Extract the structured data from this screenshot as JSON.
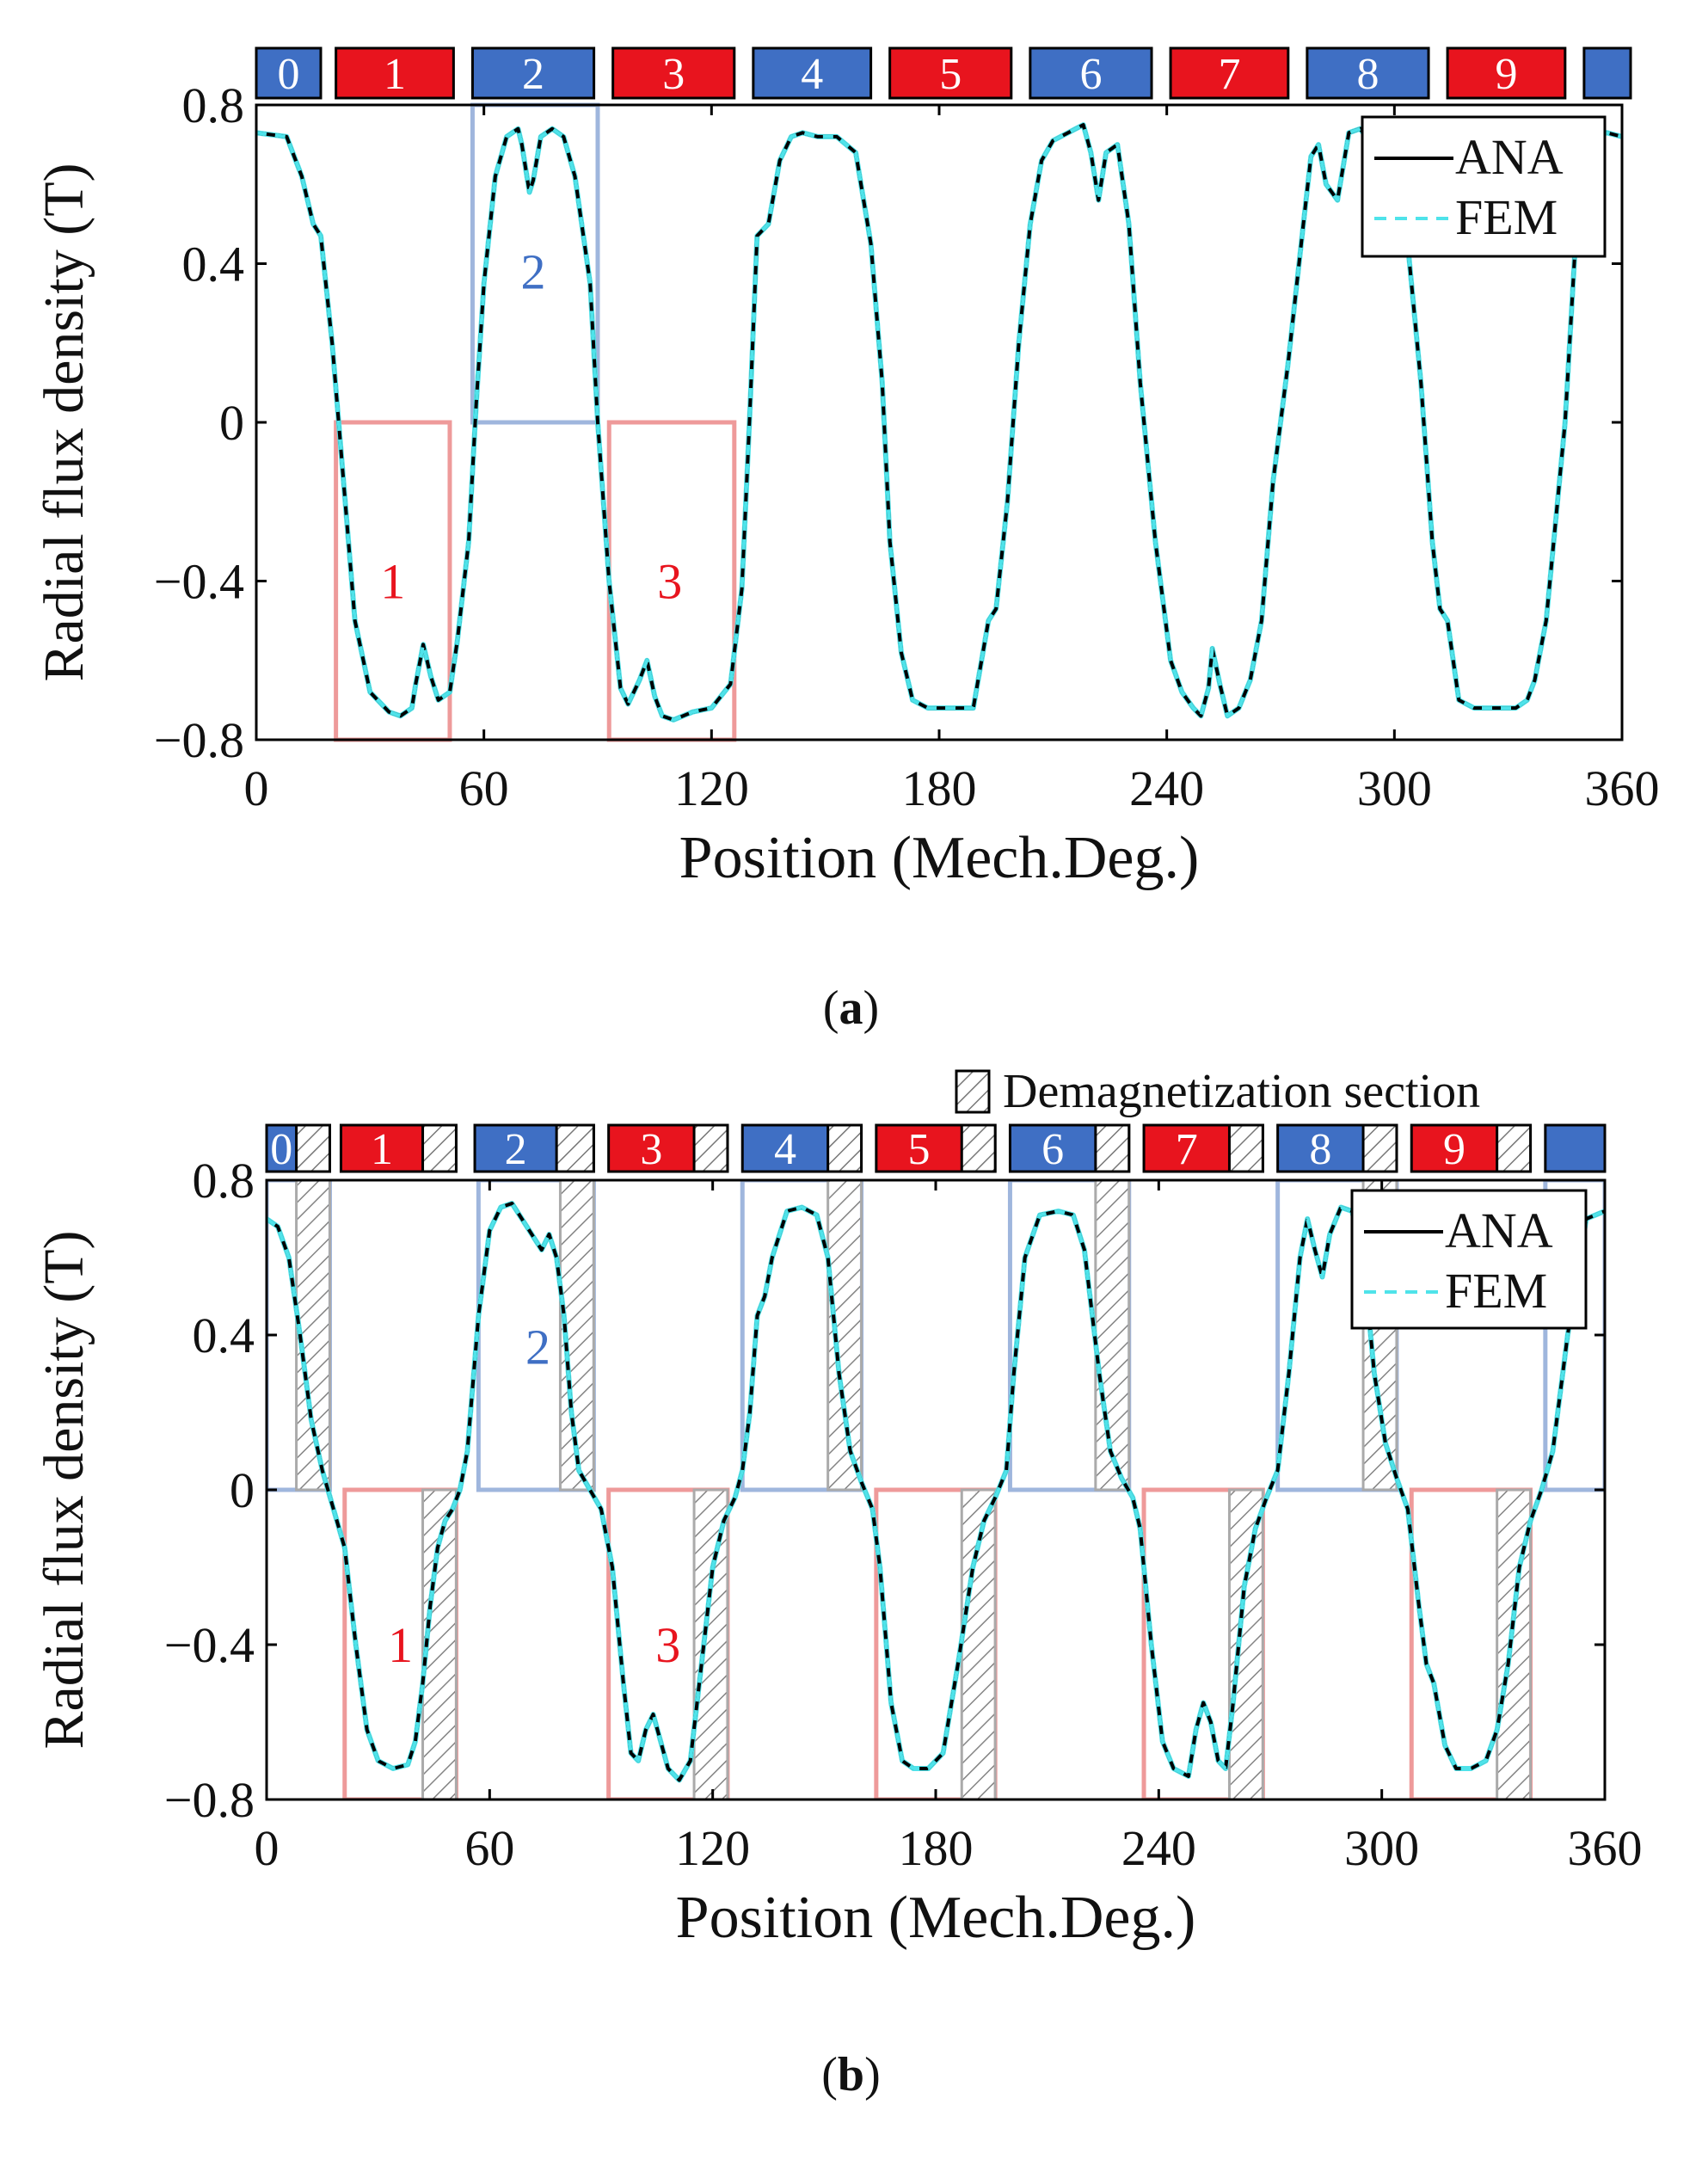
{
  "colors": {
    "red_magnet": "#e8141e",
    "blue_magnet": "#3f6fc4",
    "red_box": "#ee9a9a",
    "blue_box": "#9fb6dd",
    "ana_line": "#000000",
    "fem_line": "#4fe3ea",
    "hatch": "#888888"
  },
  "captions": {
    "a": "a",
    "b": "b"
  },
  "chart_data": [
    {
      "type": "line",
      "panel": "a",
      "xlabel": "Position (Mech.Deg.)",
      "ylabel": "Radial flux density (T)",
      "xlim": [
        0,
        360
      ],
      "ylim": [
        -0.8,
        0.8
      ],
      "xticks": [
        0,
        60,
        120,
        180,
        240,
        300,
        360
      ],
      "yticks": [
        0.8,
        0.4,
        0,
        -0.4,
        -0.8
      ],
      "ytick_labels": [
        "0.8",
        "0.4",
        "0",
        "−0.4",
        "−0.8"
      ],
      "legend": {
        "position": "top-right",
        "entries": [
          "ANA",
          "FEM"
        ]
      },
      "magnets": [
        {
          "label": "0",
          "start": 0,
          "end": 17,
          "color": "blue"
        },
        {
          "label": "1",
          "start": 21,
          "end": 52,
          "color": "red"
        },
        {
          "label": "2",
          "start": 57,
          "end": 89,
          "color": "blue"
        },
        {
          "label": "3",
          "start": 94,
          "end": 126,
          "color": "red"
        },
        {
          "label": "4",
          "start": 131,
          "end": 162,
          "color": "blue"
        },
        {
          "label": "5",
          "start": 167,
          "end": 199,
          "color": "red"
        },
        {
          "label": "6",
          "start": 204,
          "end": 236,
          "color": "blue"
        },
        {
          "label": "7",
          "start": 241,
          "end": 272,
          "color": "red"
        },
        {
          "label": "8",
          "start": 277,
          "end": 309,
          "color": "blue"
        },
        {
          "label": "9",
          "start": 314,
          "end": 345,
          "color": "red"
        },
        {
          "label": "",
          "start": 350,
          "end": 367,
          "color": "blue"
        }
      ],
      "highlight_boxes": [
        {
          "label": "1",
          "x0": 21,
          "x1": 51,
          "y0": -0.8,
          "y1": 0,
          "color": "red",
          "label_x": 36,
          "label_y": -0.4
        },
        {
          "label": "2",
          "x0": 57,
          "x1": 90,
          "y0": 0,
          "y1": 0.8,
          "color": "blue",
          "label_x": 73,
          "label_y": 0.38
        },
        {
          "label": "3",
          "x0": 93,
          "x1": 126,
          "y0": -0.8,
          "y1": 0,
          "color": "red",
          "label_x": 109,
          "label_y": -0.4
        }
      ],
      "series": [
        {
          "name": "ANA",
          "style": "solid",
          "x": [
            0,
            8,
            12,
            15,
            17,
            20,
            23,
            26,
            30,
            35,
            38,
            41,
            42,
            44,
            46,
            48,
            51,
            53,
            56,
            58,
            60,
            63,
            66,
            69,
            70,
            72,
            73,
            75,
            78,
            81,
            84,
            88,
            90,
            93,
            96,
            98,
            101,
            103,
            105,
            107,
            110,
            115,
            120,
            125,
            128,
            130,
            132,
            135,
            138,
            141,
            144,
            148,
            153,
            158,
            162,
            165,
            167,
            170,
            173,
            177,
            181,
            185,
            189,
            193,
            195,
            198,
            201,
            204,
            207,
            210,
            214,
            216,
            218,
            220,
            222,
            224,
            227,
            230,
            233,
            237,
            241,
            244,
            247,
            249,
            251,
            252,
            254,
            256,
            259,
            262,
            265,
            268,
            272,
            276,
            278,
            280,
            282,
            285,
            288,
            291,
            294,
            297,
            300,
            303,
            307,
            310,
            312,
            314,
            317,
            321,
            327,
            332,
            335,
            337,
            340,
            342,
            345,
            348,
            352,
            356,
            360
          ],
          "y": [
            0.73,
            0.72,
            0.62,
            0.5,
            0.47,
            0.2,
            -0.15,
            -0.5,
            -0.68,
            -0.73,
            -0.74,
            -0.72,
            -0.66,
            -0.56,
            -0.64,
            -0.7,
            -0.68,
            -0.55,
            -0.3,
            0.05,
            0.35,
            0.62,
            0.72,
            0.74,
            0.7,
            0.58,
            0.61,
            0.72,
            0.74,
            0.72,
            0.62,
            0.35,
            0.0,
            -0.4,
            -0.67,
            -0.71,
            -0.65,
            -0.6,
            -0.69,
            -0.74,
            -0.75,
            -0.73,
            -0.72,
            -0.66,
            -0.42,
            0.0,
            0.47,
            0.5,
            0.66,
            0.72,
            0.73,
            0.72,
            0.72,
            0.68,
            0.45,
            0.1,
            -0.3,
            -0.58,
            -0.7,
            -0.72,
            -0.72,
            -0.72,
            -0.72,
            -0.5,
            -0.47,
            -0.2,
            0.2,
            0.5,
            0.66,
            0.71,
            0.73,
            0.74,
            0.75,
            0.68,
            0.56,
            0.68,
            0.7,
            0.5,
            0.1,
            -0.3,
            -0.6,
            -0.68,
            -0.72,
            -0.74,
            -0.67,
            -0.57,
            -0.66,
            -0.74,
            -0.72,
            -0.65,
            -0.5,
            -0.15,
            0.15,
            0.5,
            0.67,
            0.7,
            0.6,
            0.56,
            0.73,
            0.74,
            0.7,
            0.72,
            0.7,
            0.5,
            0.1,
            -0.3,
            -0.47,
            -0.5,
            -0.7,
            -0.72,
            -0.72,
            -0.72,
            -0.7,
            -0.65,
            -0.5,
            -0.3,
            0.0,
            0.5,
            0.72,
            0.73,
            0.72
          ]
        },
        {
          "name": "FEM",
          "style": "dashed",
          "same_as": "ANA"
        }
      ]
    },
    {
      "type": "line",
      "panel": "b",
      "xlabel": "Position (Mech.Deg.)",
      "ylabel": "Radial flux density (T)",
      "xlim": [
        0,
        360
      ],
      "ylim": [
        -0.8,
        0.8
      ],
      "xticks": [
        0,
        60,
        120,
        180,
        240,
        300,
        360
      ],
      "yticks": [
        0.8,
        0.4,
        0,
        -0.4,
        -0.8
      ],
      "ytick_labels": [
        "0.8",
        "0.4",
        "0",
        "−0.4",
        "−0.8"
      ],
      "legend": {
        "position": "top-right",
        "entries": [
          "ANA",
          "FEM"
        ]
      },
      "demag_legend": "Demagnetization section",
      "magnets": [
        {
          "label": "0",
          "start": 0,
          "end": 17,
          "color": "blue",
          "demag": [
            8,
            17
          ]
        },
        {
          "label": "1",
          "start": 20,
          "end": 51,
          "color": "red",
          "demag": [
            42,
            51
          ]
        },
        {
          "label": "2",
          "start": 56,
          "end": 88,
          "color": "blue",
          "demag": [
            78,
            88
          ]
        },
        {
          "label": "3",
          "start": 92,
          "end": 124,
          "color": "red",
          "demag": [
            115,
            124
          ]
        },
        {
          "label": "4",
          "start": 128,
          "end": 160,
          "color": "blue",
          "demag": [
            151,
            160
          ]
        },
        {
          "label": "5",
          "start": 164,
          "end": 196,
          "color": "red",
          "demag": [
            187,
            196
          ]
        },
        {
          "label": "6",
          "start": 200,
          "end": 232,
          "color": "blue",
          "demag": [
            223,
            232
          ]
        },
        {
          "label": "7",
          "start": 236,
          "end": 268,
          "color": "red",
          "demag": [
            259,
            268
          ]
        },
        {
          "label": "8",
          "start": 272,
          "end": 304,
          "color": "blue",
          "demag": [
            295,
            304
          ]
        },
        {
          "label": "9",
          "start": 308,
          "end": 340,
          "color": "red",
          "demag": [
            331,
            340
          ]
        },
        {
          "label": "",
          "start": 344,
          "end": 360,
          "color": "blue"
        }
      ],
      "pole_boxes": [
        {
          "x0": 0,
          "x1": 17,
          "sign": "pos",
          "demag": [
            8,
            17
          ]
        },
        {
          "x0": 21,
          "x1": 51,
          "sign": "neg",
          "demag": [
            42,
            51
          ]
        },
        {
          "x0": 57,
          "x1": 88,
          "sign": "pos",
          "demag": [
            79,
            88
          ]
        },
        {
          "x0": 92,
          "x1": 124,
          "sign": "neg",
          "demag": [
            115,
            124
          ]
        },
        {
          "x0": 128,
          "x1": 160,
          "sign": "pos",
          "demag": [
            151,
            160
          ]
        },
        {
          "x0": 164,
          "x1": 196,
          "sign": "neg",
          "demag": [
            187,
            196
          ]
        },
        {
          "x0": 200,
          "x1": 232,
          "sign": "pos",
          "demag": [
            223,
            232
          ]
        },
        {
          "x0": 236,
          "x1": 268,
          "sign": "neg",
          "demag": [
            259,
            268
          ]
        },
        {
          "x0": 272,
          "x1": 304,
          "sign": "pos",
          "demag": [
            295,
            304
          ]
        },
        {
          "x0": 308,
          "x1": 340,
          "sign": "neg",
          "demag": [
            331,
            340
          ]
        },
        {
          "x0": 344,
          "x1": 360,
          "sign": "pos"
        }
      ],
      "box_labels": [
        {
          "label": "1",
          "x": 36,
          "y": -0.4,
          "color": "red"
        },
        {
          "label": "2",
          "x": 73,
          "y": 0.37,
          "color": "blue"
        },
        {
          "label": "3",
          "x": 108,
          "y": -0.4,
          "color": "red"
        }
      ],
      "series": [
        {
          "name": "ANA",
          "style": "solid",
          "x": [
            0,
            3,
            6,
            9,
            12,
            15,
            18,
            21,
            24,
            27,
            30,
            34,
            38,
            40,
            42,
            44,
            46,
            48,
            50,
            52,
            54,
            57,
            60,
            63,
            66,
            70,
            74,
            76,
            78,
            80,
            82,
            84,
            87,
            90,
            93,
            96,
            98,
            100,
            102,
            104,
            106,
            108,
            111,
            114,
            117,
            120,
            123,
            126,
            128,
            130,
            132,
            134,
            136,
            140,
            144,
            148,
            151,
            154,
            157,
            160,
            163,
            165,
            168,
            171,
            174,
            178,
            182,
            186,
            190,
            193,
            196,
            199,
            201,
            204,
            208,
            213,
            217,
            220,
            224,
            227,
            230,
            233,
            235,
            238,
            241,
            244,
            248,
            250,
            252,
            254,
            256,
            258,
            260,
            263,
            266,
            269,
            272,
            275,
            278,
            280,
            282,
            284,
            286,
            289,
            292,
            295,
            298,
            301,
            304,
            307,
            310,
            312,
            314,
            317,
            320,
            324,
            328,
            331,
            334,
            337,
            340,
            343,
            346,
            350,
            355,
            360
          ],
          "y": [
            0.7,
            0.68,
            0.6,
            0.4,
            0.18,
            0.05,
            -0.05,
            -0.15,
            -0.4,
            -0.62,
            -0.7,
            -0.72,
            -0.71,
            -0.65,
            -0.5,
            -0.3,
            -0.15,
            -0.08,
            -0.05,
            0.0,
            0.1,
            0.45,
            0.67,
            0.73,
            0.74,
            0.68,
            0.62,
            0.66,
            0.6,
            0.45,
            0.2,
            0.05,
            0.0,
            -0.05,
            -0.2,
            -0.5,
            -0.68,
            -0.7,
            -0.62,
            -0.58,
            -0.65,
            -0.72,
            -0.75,
            -0.7,
            -0.45,
            -0.2,
            -0.08,
            -0.02,
            0.05,
            0.2,
            0.45,
            0.5,
            0.6,
            0.72,
            0.73,
            0.71,
            0.6,
            0.3,
            0.1,
            0.02,
            -0.05,
            -0.2,
            -0.55,
            -0.7,
            -0.72,
            -0.72,
            -0.68,
            -0.45,
            -0.2,
            -0.08,
            -0.02,
            0.05,
            0.3,
            0.6,
            0.71,
            0.72,
            0.71,
            0.62,
            0.3,
            0.1,
            0.03,
            -0.02,
            -0.1,
            -0.4,
            -0.65,
            -0.72,
            -0.74,
            -0.62,
            -0.55,
            -0.6,
            -0.7,
            -0.72,
            -0.55,
            -0.25,
            -0.1,
            -0.02,
            0.05,
            0.3,
            0.6,
            0.7,
            0.62,
            0.55,
            0.66,
            0.73,
            0.72,
            0.6,
            0.3,
            0.12,
            0.03,
            -0.05,
            -0.3,
            -0.45,
            -0.5,
            -0.66,
            -0.72,
            -0.72,
            -0.7,
            -0.62,
            -0.45,
            -0.2,
            -0.08,
            0.0,
            0.1,
            0.4,
            0.7,
            0.72
          ]
        },
        {
          "name": "FEM",
          "style": "dashed",
          "same_as": "ANA"
        }
      ]
    }
  ]
}
